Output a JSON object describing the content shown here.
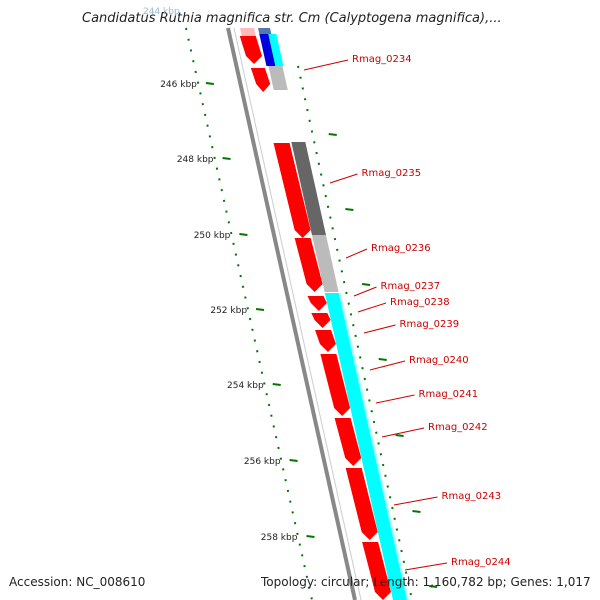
{
  "title": "Candidatus Ruthia magnifica str. Cm (Calyptogena magnifica),...",
  "top_partial_label": "244 kbp",
  "accession_text": "Accession: NC_008610",
  "topology_text": "Topology: circular; Length: 1,160,782 bp; Genes: 1,017",
  "colors": {
    "gene_red": "#ff0000",
    "gene_red_light": "#ffbbbb",
    "cds_cyan": "#00ffff",
    "gc_dark": "#666666",
    "gc_light": "#bbbbbb",
    "blue": "#0000dd",
    "label_red": "#cc0000",
    "tick_green": "#007700",
    "backbone_gray": "#888888"
  },
  "scale_ticks": [
    "246 kbp",
    "248 kbp",
    "250 kbp",
    "252 kbp",
    "254 kbp",
    "256 kbp",
    "258 kbp"
  ],
  "gene_labels": [
    "Rmag_0234",
    "Rmag_0235",
    "Rmag_0236",
    "Rmag_0237",
    "Rmag_0238",
    "Rmag_0239",
    "Rmag_0240",
    "Rmag_0241",
    "Rmag_0242",
    "Rmag_0243",
    "Rmag_0244"
  ]
}
